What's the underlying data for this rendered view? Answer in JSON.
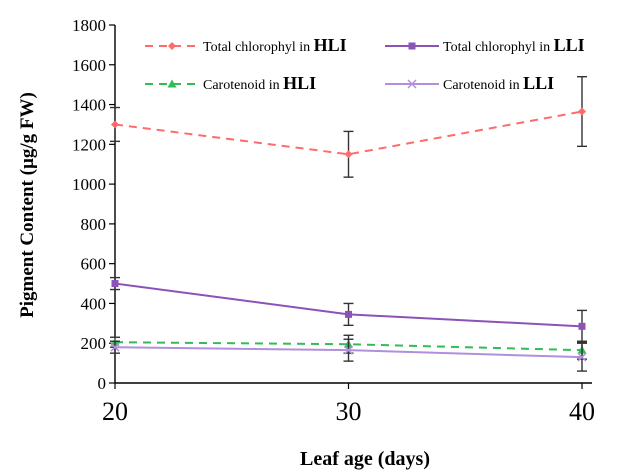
{
  "chart_data": {
    "type": "line",
    "xlabel": "Leaf age (days)",
    "ylabel": "Pigment Content (µg/g FW)",
    "x": [
      20,
      30,
      40
    ],
    "x_ticks": [
      "20",
      "30",
      "40"
    ],
    "xlim": [
      20,
      40
    ],
    "ylim": [
      0,
      1800
    ],
    "y_ticks": [
      "0",
      "200",
      "400",
      "600",
      "800",
      "1000",
      "1200",
      "1400",
      "1600",
      "1800"
    ],
    "grid": false,
    "legend_position": "top",
    "series": [
      {
        "name_prefix": "Total chlorophyl in",
        "name_suffix": "HLI",
        "values": [
          1300,
          1150,
          1365
        ],
        "errors": [
          85,
          115,
          175
        ],
        "color": "#ff6b6b",
        "dash": true,
        "marker": "diamond"
      },
      {
        "name_prefix": "Total chlorophyl in",
        "name_suffix": "LLI",
        "values": [
          500,
          345,
          285
        ],
        "errors": [
          30,
          55,
          80
        ],
        "color": "#8b52b8",
        "dash": false,
        "marker": "square"
      },
      {
        "name_prefix": "Carotenoid in",
        "name_suffix": "HLI",
        "values": [
          205,
          195,
          165
        ],
        "errors": [
          25,
          45,
          45
        ],
        "color": "#33bb55",
        "dash": true,
        "marker": "triangle"
      },
      {
        "name_prefix": "Carotenoid in",
        "name_suffix": "LLI",
        "values": [
          180,
          165,
          130
        ],
        "errors": [
          30,
          55,
          70
        ],
        "color": "#b08fdc",
        "dash": false,
        "marker": "x"
      }
    ]
  }
}
